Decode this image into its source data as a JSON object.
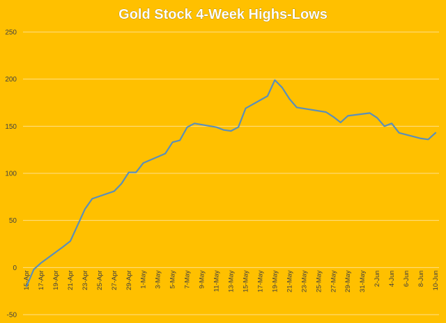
{
  "chart_data": {
    "type": "line",
    "title": "Gold Stock 4-Week Highs-Lows",
    "xlabel": "",
    "ylabel": "",
    "ylim": [
      -50,
      250
    ],
    "yticks": [
      -50,
      0,
      50,
      100,
      150,
      200,
      250
    ],
    "grid": true,
    "background_color": "#FFC000",
    "line_color": "#5B8FB9",
    "grid_color": "#FFE08A",
    "x_tick_labels": [
      "15-Apr",
      "17-Apr",
      "19-Apr",
      "21-Apr",
      "23-Apr",
      "25-Apr",
      "27-Apr",
      "29-Apr",
      "1-May",
      "3-May",
      "5-May",
      "7-May",
      "9-May",
      "11-May",
      "13-May",
      "15-May",
      "17-May",
      "19-May",
      "21-May",
      "23-May",
      "25-May",
      "27-May",
      "29-May",
      "31-May",
      "2-Jun",
      "4-Jun",
      "6-Jun",
      "8-Jun",
      "10-Jun"
    ],
    "series": [
      {
        "x": [
          "15-Apr",
          "16-Apr",
          "17-Apr",
          "20-Apr",
          "21-Apr",
          "22-Apr",
          "23-Apr",
          "24-Apr",
          "27-Apr",
          "28-Apr",
          "29-Apr",
          "30-Apr",
          "1-May",
          "4-May",
          "5-May",
          "6-May",
          "7-May",
          "8-May",
          "11-May",
          "12-May",
          "13-May",
          "14-May",
          "15-May",
          "18-May",
          "19-May",
          "20-May",
          "21-May",
          "22-May",
          "26-May",
          "27-May",
          "28-May",
          "29-May",
          "1-Jun",
          "2-Jun",
          "3-Jun",
          "4-Jun",
          "5-Jun",
          "8-Jun",
          "9-Jun",
          "10-Jun"
        ],
        "values": [
          -20,
          -2,
          5,
          22,
          28,
          45,
          62,
          73,
          81,
          89,
          101,
          101,
          111,
          121,
          133,
          135,
          149,
          153,
          149,
          146,
          145,
          149,
          169,
          182,
          199,
          191,
          179,
          170,
          165,
          160,
          154,
          161,
          164,
          159,
          150,
          153,
          143,
          137,
          136,
          143
        ]
      }
    ]
  }
}
